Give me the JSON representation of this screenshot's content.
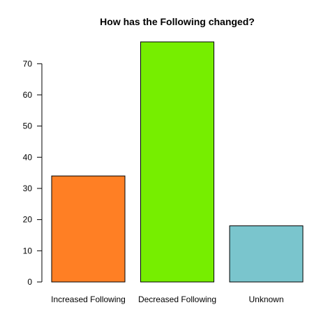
{
  "chart_data": {
    "type": "bar",
    "title": "How has the Following changed?",
    "xlabel": "",
    "ylabel": "",
    "categories": [
      "Increased Following",
      "Decreased Following",
      "Unknown"
    ],
    "values": [
      34,
      77,
      18
    ],
    "colors": [
      "#ff7f24",
      "#76ee00",
      "#7ac5cd"
    ],
    "yticks": [
      0,
      10,
      20,
      30,
      40,
      50,
      60,
      70
    ],
    "ylim": [
      0,
      77
    ],
    "grid": false,
    "legend": "none"
  }
}
